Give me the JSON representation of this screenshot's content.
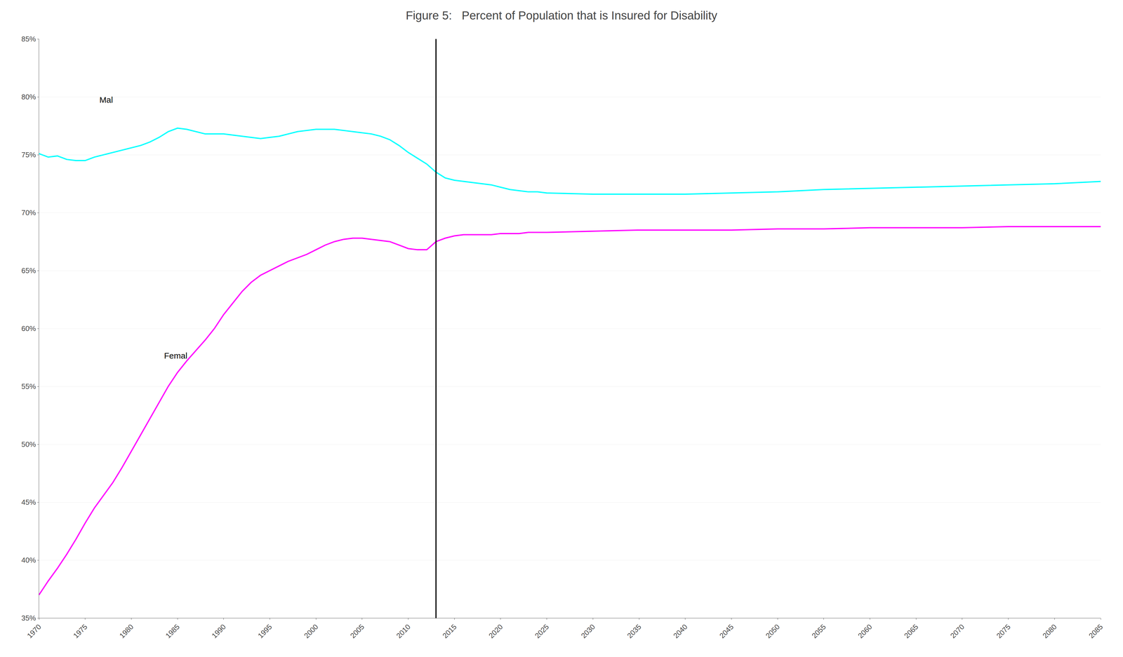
{
  "chart_data": {
    "type": "line",
    "title": "Figure 5:   Percent of Population that is Insured for Disability",
    "x": [
      1970,
      1971,
      1972,
      1973,
      1974,
      1975,
      1976,
      1977,
      1978,
      1979,
      1980,
      1981,
      1982,
      1983,
      1984,
      1985,
      1986,
      1987,
      1988,
      1989,
      1990,
      1991,
      1992,
      1993,
      1994,
      1995,
      1996,
      1997,
      1998,
      1999,
      2000,
      2001,
      2002,
      2003,
      2004,
      2005,
      2006,
      2007,
      2008,
      2009,
      2010,
      2011,
      2012,
      2013,
      2014,
      2015,
      2016,
      2017,
      2018,
      2019,
      2020,
      2021,
      2022,
      2023,
      2024,
      2025,
      2030,
      2035,
      2040,
      2045,
      2050,
      2055,
      2060,
      2065,
      2070,
      2075,
      2080,
      2085
    ],
    "series": [
      {
        "color": "#00FFFF",
        "values": [
          0.751,
          0.748,
          0.749,
          0.746,
          0.745,
          0.745,
          0.748,
          0.75,
          0.752,
          0.754,
          0.756,
          0.758,
          0.761,
          0.765,
          0.77,
          0.773,
          0.772,
          0.77,
          0.768,
          0.768,
          0.768,
          0.767,
          0.766,
          0.765,
          0.764,
          0.765,
          0.766,
          0.768,
          0.77,
          0.771,
          0.772,
          0.772,
          0.772,
          0.771,
          0.77,
          0.769,
          0.768,
          0.766,
          0.763,
          0.758,
          0.752,
          0.747,
          0.742,
          0.735,
          0.73,
          0.728,
          0.727,
          0.726,
          0.725,
          0.724,
          0.722,
          0.72,
          0.719,
          0.718,
          0.718,
          0.717,
          0.716,
          0.716,
          0.716,
          0.717,
          0.718,
          0.72,
          0.721,
          0.722,
          0.723,
          0.724,
          0.725,
          0.727
        ]
      },
      {
        "color": "#FF00FF",
        "values": [
          0.37,
          0.382,
          0.393,
          0.405,
          0.418,
          0.432,
          0.445,
          0.456,
          0.467,
          0.48,
          0.494,
          0.508,
          0.522,
          0.536,
          0.55,
          0.562,
          0.572,
          0.581,
          0.59,
          0.6,
          0.612,
          0.622,
          0.632,
          0.64,
          0.646,
          0.65,
          0.654,
          0.658,
          0.661,
          0.664,
          0.668,
          0.672,
          0.675,
          0.677,
          0.678,
          0.678,
          0.677,
          0.676,
          0.675,
          0.672,
          0.669,
          0.668,
          0.668,
          0.675,
          0.678,
          0.68,
          0.681,
          0.681,
          0.681,
          0.681,
          0.682,
          0.682,
          0.682,
          0.683,
          0.683,
          0.683,
          0.684,
          0.685,
          0.685,
          0.685,
          0.686,
          0.686,
          0.687,
          0.687,
          0.687,
          0.688,
          0.688,
          0.688
        ]
      }
    ],
    "annotations": [
      {
        "text": "Mal",
        "x": 1976.5,
        "y": 0.793
      },
      {
        "text": "Femal",
        "x": 1983.5,
        "y": 0.572
      }
    ],
    "vline": 2013,
    "xlim": [
      1970,
      2085
    ],
    "xticks": [
      1970,
      1975,
      1980,
      1985,
      1990,
      1995,
      2000,
      2005,
      2010,
      2015,
      2020,
      2025,
      2030,
      2035,
      2040,
      2045,
      2050,
      2055,
      2060,
      2065,
      2070,
      2075,
      2080,
      2085
    ],
    "ylim": [
      0.35,
      0.85
    ],
    "yticks": [
      {
        "value": 0.35,
        "label": "35%"
      },
      {
        "value": 0.4,
        "label": "40%"
      },
      {
        "value": 0.45,
        "label": "45%"
      },
      {
        "value": 0.5,
        "label": "50%"
      },
      {
        "value": 0.55,
        "label": "55%"
      },
      {
        "value": 0.6,
        "label": "60%"
      },
      {
        "value": 0.65,
        "label": "65%"
      },
      {
        "value": 0.7,
        "label": "70%"
      },
      {
        "value": 0.75,
        "label": "75%"
      },
      {
        "value": 0.8,
        "label": "80%"
      },
      {
        "value": 0.85,
        "label": "85%"
      }
    ],
    "grid": true
  }
}
